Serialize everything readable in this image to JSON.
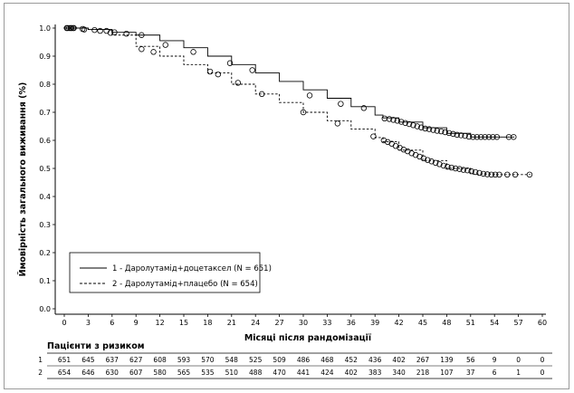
{
  "chart_data": {
    "type": "line",
    "subtype": "kaplan-meier",
    "ylabel": "Ймовірність загального виживання (%)",
    "xlabel": "Місяці після рандомізації",
    "xlim": [
      0,
      60
    ],
    "ylim": [
      0,
      1.0
    ],
    "xticks": [
      0,
      3,
      6,
      9,
      12,
      15,
      18,
      21,
      24,
      27,
      30,
      33,
      36,
      39,
      42,
      45,
      48,
      51,
      54,
      57,
      60
    ],
    "yticks": [
      "0.0",
      "0.1",
      "0.2",
      "0.3",
      "0.4",
      "0.5",
      "0.6",
      "0.7",
      "0.8",
      "0.9",
      "1.0"
    ],
    "legend": {
      "placement": "bottom-left",
      "entries": [
        {
          "label": "1 -  Даролутамід+доцетаксел  (N = 651)",
          "style": "solid"
        },
        {
          "label": "2 - Даролутамід+плацебо  (N = 654)",
          "style": "dashed"
        }
      ]
    },
    "series": [
      {
        "name": "Даролутамід+доцетаксел",
        "id": "1",
        "style": "solid",
        "x": [
          0,
          3,
          6,
          9,
          12,
          15,
          18,
          21,
          24,
          27,
          30,
          33,
          36,
          39,
          40,
          42,
          45,
          48,
          51,
          54,
          56.5
        ],
        "y": [
          1.0,
          0.995,
          0.985,
          0.975,
          0.955,
          0.93,
          0.9,
          0.87,
          0.84,
          0.81,
          0.78,
          0.75,
          0.72,
          0.69,
          0.68,
          0.665,
          0.645,
          0.625,
          0.612,
          0.612,
          0.612
        ],
        "censor_x": [
          0.3,
          0.6,
          0.9,
          1.1,
          2.3,
          3.8,
          5.3,
          6.3,
          7.8,
          9.7,
          12.7,
          16.2,
          20.8,
          23.6,
          30.8,
          34.7,
          37.6,
          40.2,
          40.8,
          41.3,
          41.8,
          42.3,
          42.8,
          43.3,
          43.8,
          44.3,
          44.8,
          45.3,
          45.8,
          46.3,
          46.8,
          47.3,
          47.8,
          48.3,
          48.8,
          49.3,
          49.8,
          50.3,
          50.8,
          51.3,
          51.8,
          52.3,
          52.8,
          53.3,
          53.8,
          54.3,
          55.8,
          56.4
        ],
        "censor_y": [
          1.0,
          1.0,
          1.0,
          1.0,
          0.997,
          0.993,
          0.99,
          0.985,
          0.98,
          0.975,
          0.94,
          0.915,
          0.875,
          0.85,
          0.76,
          0.73,
          0.715,
          0.678,
          0.676,
          0.673,
          0.67,
          0.666,
          0.662,
          0.658,
          0.654,
          0.65,
          0.646,
          0.642,
          0.64,
          0.637,
          0.634,
          0.632,
          0.629,
          0.626,
          0.623,
          0.62,
          0.618,
          0.616,
          0.613,
          0.612,
          0.612,
          0.612,
          0.612,
          0.612,
          0.612,
          0.612,
          0.612,
          0.612
        ]
      },
      {
        "name": "Даролутамід+плацебо",
        "id": "2",
        "style": "dashed",
        "x": [
          0,
          3,
          6,
          9,
          12,
          15,
          18,
          21,
          24,
          27,
          30,
          33,
          36,
          39,
          40,
          42,
          45,
          48,
          51,
          54,
          58.5
        ],
        "y": [
          1.0,
          0.995,
          0.975,
          0.935,
          0.9,
          0.87,
          0.84,
          0.8,
          0.765,
          0.735,
          0.7,
          0.67,
          0.64,
          0.61,
          0.595,
          0.565,
          0.528,
          0.5,
          0.48,
          0.478,
          0.478
        ],
        "censor_x": [
          0.4,
          0.8,
          1.2,
          2.5,
          4.5,
          5.8,
          9.7,
          11.2,
          18.3,
          19.3,
          21.8,
          24.8,
          30.0,
          34.3,
          38.8,
          40.1,
          40.6,
          41.1,
          41.6,
          42.1,
          42.6,
          43.1,
          43.6,
          44.1,
          44.6,
          45.1,
          45.6,
          46.1,
          46.6,
          47.1,
          47.6,
          48.1,
          48.6,
          49.1,
          49.6,
          50.1,
          50.6,
          51.1,
          51.6,
          52.1,
          52.6,
          53.1,
          53.6,
          54.1,
          54.6,
          55.6,
          56.6,
          58.4
        ],
        "censor_y": [
          1.0,
          1.0,
          1.0,
          0.995,
          0.99,
          0.983,
          0.925,
          0.915,
          0.845,
          0.835,
          0.805,
          0.765,
          0.7,
          0.66,
          0.614,
          0.6,
          0.594,
          0.588,
          0.58,
          0.574,
          0.567,
          0.561,
          0.554,
          0.548,
          0.542,
          0.536,
          0.53,
          0.525,
          0.52,
          0.515,
          0.51,
          0.506,
          0.503,
          0.5,
          0.498,
          0.495,
          0.493,
          0.49,
          0.487,
          0.484,
          0.481,
          0.479,
          0.478,
          0.478,
          0.478,
          0.478,
          0.478,
          0.478
        ]
      }
    ]
  },
  "risk_table": {
    "title": "Пацієнти з ризиком",
    "rows": [
      {
        "label": "1",
        "values": [
          "651",
          "645",
          "637",
          "627",
          "608",
          "593",
          "570",
          "548",
          "525",
          "509",
          "486",
          "468",
          "452",
          "436",
          "402",
          "267",
          "139",
          "56",
          "9",
          "0",
          "0"
        ]
      },
      {
        "label": "2",
        "values": [
          "654",
          "646",
          "630",
          "607",
          "580",
          "565",
          "535",
          "510",
          "488",
          "470",
          "441",
          "424",
          "402",
          "383",
          "340",
          "218",
          "107",
          "37",
          "6",
          "1",
          "0"
        ]
      }
    ]
  }
}
